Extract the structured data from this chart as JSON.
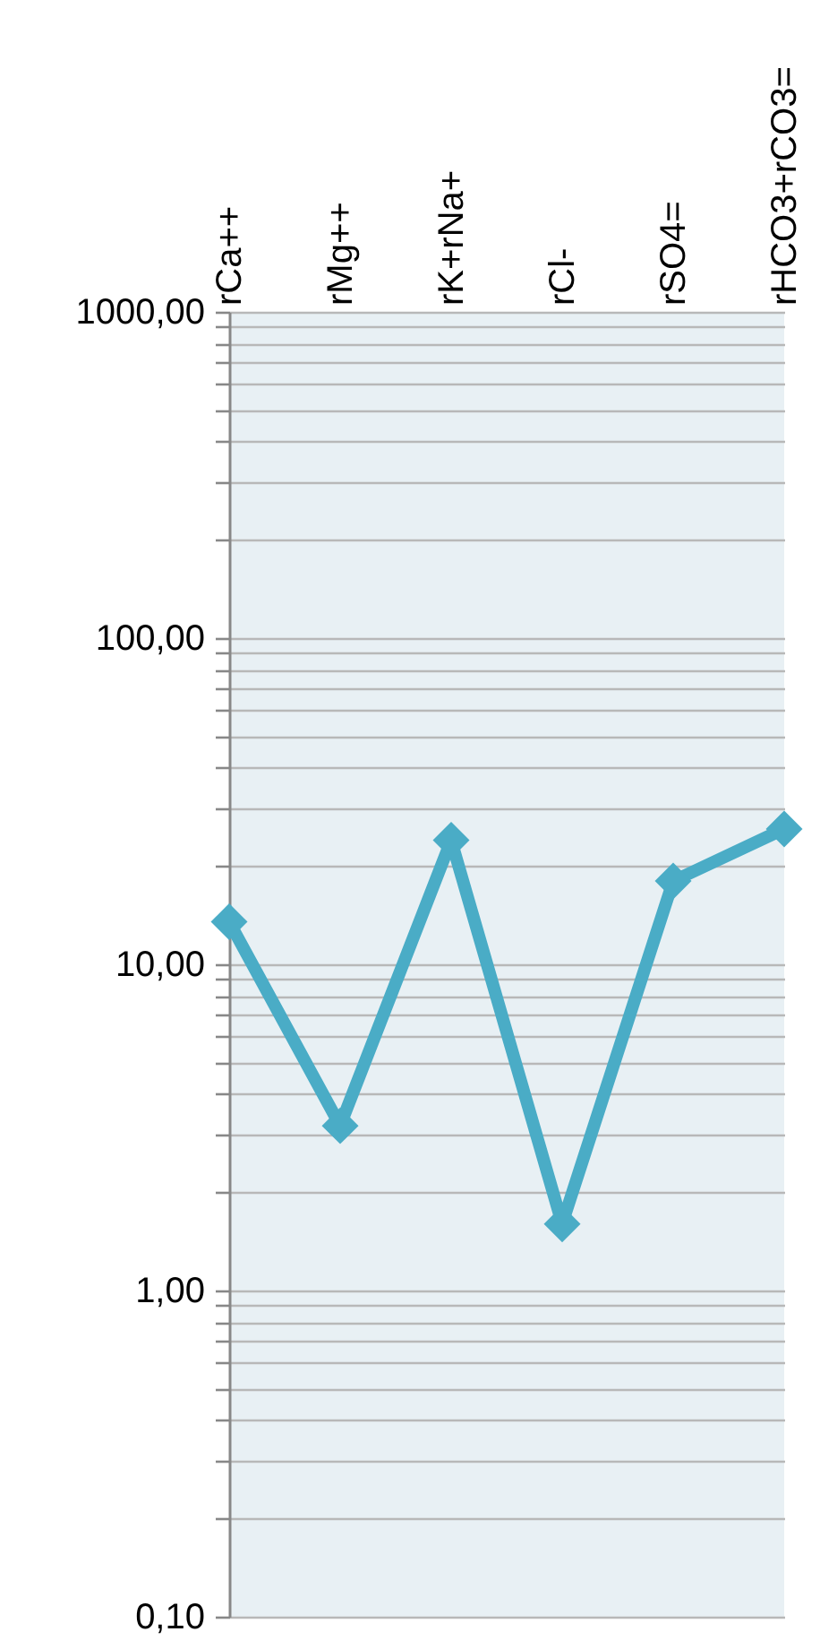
{
  "chart_data": {
    "type": "line",
    "categories": [
      "rCa++",
      "rMg++",
      "rK+rNa+",
      "rCl-",
      "rSO4=",
      "rHCO3+rCO3="
    ],
    "series": [
      {
        "color": "#4aacc6",
        "values": [
          13.5,
          3.2,
          24,
          1.6,
          18,
          26
        ]
      }
    ],
    "log": true,
    "ylim": [
      0.1,
      1000
    ],
    "yticks": [
      {
        "value": 0.1,
        "label": "0,10"
      },
      {
        "value": 0.2,
        "label": null
      },
      {
        "value": 0.3,
        "label": null
      },
      {
        "value": 0.4,
        "label": null
      },
      {
        "value": 0.5,
        "label": null
      },
      {
        "value": 0.6,
        "label": null
      },
      {
        "value": 0.7,
        "label": null
      },
      {
        "value": 0.8,
        "label": null
      },
      {
        "value": 0.9,
        "label": null
      },
      {
        "value": 1,
        "label": "1,00"
      },
      {
        "value": 2,
        "label": null
      },
      {
        "value": 3,
        "label": null
      },
      {
        "value": 4,
        "label": null
      },
      {
        "value": 5,
        "label": null
      },
      {
        "value": 6,
        "label": null
      },
      {
        "value": 7,
        "label": null
      },
      {
        "value": 8,
        "label": null
      },
      {
        "value": 9,
        "label": null
      },
      {
        "value": 10,
        "label": "10,00"
      },
      {
        "value": 20,
        "label": null
      },
      {
        "value": 30,
        "label": null
      },
      {
        "value": 40,
        "label": null
      },
      {
        "value": 50,
        "label": null
      },
      {
        "value": 60,
        "label": null
      },
      {
        "value": 70,
        "label": null
      },
      {
        "value": 80,
        "label": null
      },
      {
        "value": 90,
        "label": null
      },
      {
        "value": 100,
        "label": "100,00"
      },
      {
        "value": 200,
        "label": null
      },
      {
        "value": 300,
        "label": null
      },
      {
        "value": 400,
        "label": null
      },
      {
        "value": 500,
        "label": null
      },
      {
        "value": 600,
        "label": null
      },
      {
        "value": 700,
        "label": null
      },
      {
        "value": 800,
        "label": null
      },
      {
        "value": 900,
        "label": null
      },
      {
        "value": 1000,
        "label": "1000,00"
      }
    ],
    "grid": "y",
    "marker": "diamond",
    "line_style": "solid"
  }
}
